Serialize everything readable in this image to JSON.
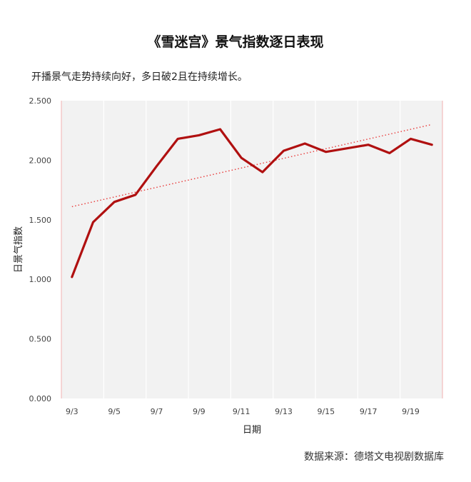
{
  "title": "《雪迷宫》景气指数逐日表现",
  "subtitle": "开播景气走势持续向好，多日破2且在持续增长。",
  "source": "数据来源：德塔文电视剧数据库",
  "colors": {
    "line": "#b01010",
    "trend": "#e83a3a",
    "plot_bg": "#f2f2f2",
    "grid": "#ffffff"
  },
  "chart_data": {
    "type": "line",
    "title": "《雪迷宫》景气指数逐日表现",
    "xlabel": "日期",
    "ylabel": "日景气指数",
    "ylim": [
      0,
      2.5
    ],
    "yticks": [
      "0.000",
      "0.500",
      "1.000",
      "1.500",
      "2.000",
      "2.500"
    ],
    "categories": [
      "9/3",
      "9/4",
      "9/5",
      "9/6",
      "9/7",
      "9/8",
      "9/9",
      "9/10",
      "9/11",
      "9/12",
      "9/13",
      "9/14",
      "9/15",
      "9/16",
      "9/17",
      "9/18",
      "9/19",
      "9/20"
    ],
    "xtick_labels": [
      "9/3",
      "9/5",
      "9/7",
      "9/9",
      "9/11",
      "9/13",
      "9/15",
      "9/17",
      "9/19"
    ],
    "series": [
      {
        "values": [
          1.02,
          1.48,
          1.65,
          1.71,
          1.95,
          2.18,
          2.21,
          2.26,
          2.02,
          1.9,
          2.08,
          2.14,
          2.07,
          2.1,
          2.13,
          2.06,
          2.18,
          2.13
        ]
      }
    ],
    "trendline": {
      "style": "dotted",
      "start": 1.61,
      "end": 2.3
    },
    "grid": true
  }
}
